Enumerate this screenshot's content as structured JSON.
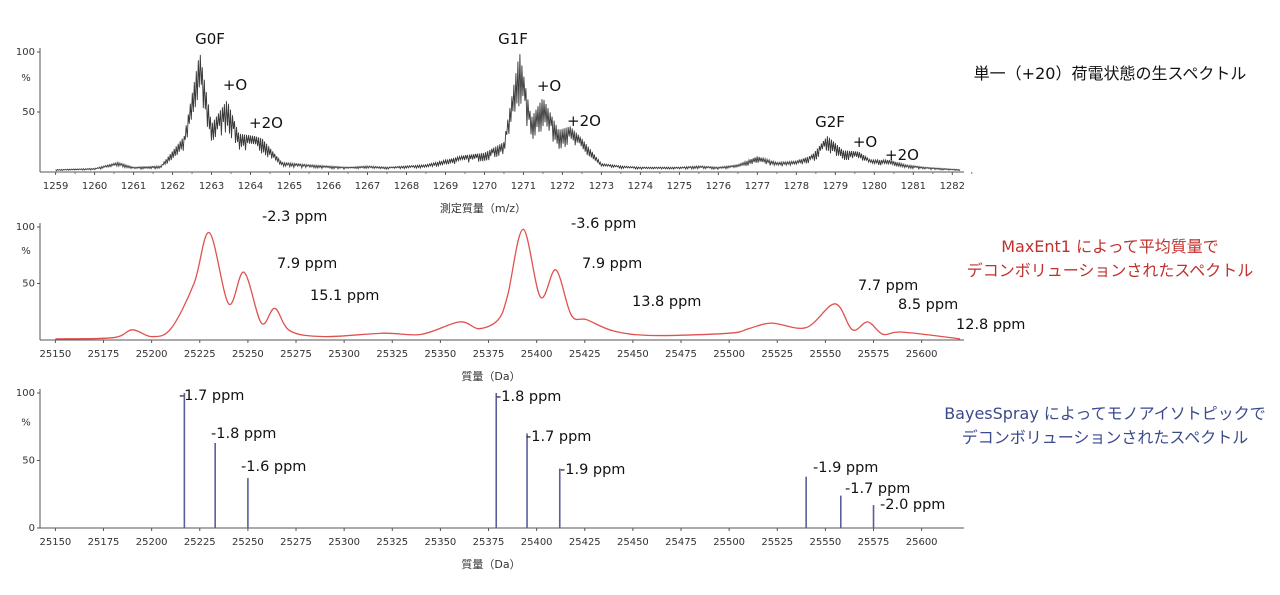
{
  "colors": {
    "raw": "#3a3a3a",
    "maxent": "#e0524f",
    "bayes": "#5a5e9c",
    "side_red": "#c0312e",
    "side_blue": "#3b4a8c"
  },
  "chart_data": [
    {
      "type": "line",
      "x": [
        1259.0,
        1260.0,
        1260.6,
        1261.0,
        1261.7,
        1262.3,
        1262.7,
        1263.0,
        1263.4,
        1263.7,
        1264.1,
        1264.3,
        1264.8,
        1265.5,
        1266.0,
        1266.5,
        1267.0,
        1267.5,
        1268.0,
        1268.5,
        1269.0,
        1269.5,
        1270.0,
        1270.5,
        1270.9,
        1271.2,
        1271.5,
        1271.9,
        1272.2,
        1272.5,
        1273.0,
        1273.5,
        1274.0,
        1274.5,
        1275.0,
        1275.5,
        1276.0,
        1276.5,
        1277.0,
        1277.5,
        1278.0,
        1278.4,
        1278.8,
        1279.2,
        1279.6,
        1279.9,
        1280.4,
        1280.8,
        1281.3,
        1282.2
      ],
      "y": [
        2,
        3,
        8,
        4,
        5,
        30,
        100,
        40,
        60,
        32,
        30,
        28,
        8,
        6,
        5,
        4,
        5,
        4,
        5,
        6,
        10,
        14,
        16,
        25,
        100,
        45,
        62,
        35,
        38,
        28,
        7,
        5,
        4,
        4,
        4,
        5,
        4,
        6,
        13,
        8,
        9,
        14,
        30,
        18,
        17,
        10,
        10,
        6,
        4,
        2
      ],
      "ylim": [
        0,
        100
      ],
      "yticks": [
        100,
        50
      ],
      "ylabel": "%",
      "xticks": [
        1259,
        1260,
        1261,
        1262,
        1263,
        1264,
        1265,
        1266,
        1267,
        1268,
        1269,
        1270,
        1271,
        1272,
        1273,
        1274,
        1275,
        1276,
        1277,
        1278,
        1279,
        1280,
        1281,
        1282
      ],
      "xlabel": "測定質量（m/z）",
      "annotations": [
        "G0F",
        "+O",
        "+2O",
        "G1F",
        "+O",
        "+2O",
        "G2F",
        "+O",
        "+2O"
      ],
      "side_text": "単一（+20）荷電状態の生スペクトル"
    },
    {
      "type": "line",
      "x": [
        25150,
        25180,
        25190,
        25200,
        25210,
        25222,
        25230,
        25240,
        25248,
        25257,
        25264,
        25272,
        25290,
        25320,
        25340,
        25360,
        25370,
        25380,
        25385,
        25393,
        25402,
        25410,
        25418,
        25426,
        25440,
        25460,
        25500,
        25510,
        25522,
        25540,
        25555,
        25564,
        25572,
        25580,
        25590,
        25620
      ],
      "y": [
        1,
        2,
        9,
        3,
        10,
        50,
        95,
        32,
        60,
        15,
        28,
        8,
        3,
        6,
        5,
        16,
        10,
        18,
        40,
        98,
        38,
        62,
        22,
        18,
        8,
        4,
        6,
        10,
        15,
        11,
        32,
        9,
        16,
        5,
        7,
        1
      ],
      "ylim": [
        0,
        100
      ],
      "yticks": [
        100,
        50
      ],
      "ylabel": "%",
      "xticks": [
        25150,
        25175,
        25200,
        25225,
        25250,
        25275,
        25300,
        25325,
        25350,
        25375,
        25400,
        25425,
        25450,
        25475,
        25500,
        25525,
        25550,
        25575,
        25600
      ],
      "xlabel": "質量（Da）",
      "annotations": [
        "-2.3 ppm",
        "7.9 ppm",
        "15.1 ppm",
        "-3.6 ppm",
        "7.9 ppm",
        "13.8 ppm",
        "7.7 ppm",
        "8.5 ppm",
        "12.8 ppm"
      ],
      "side_text": [
        "MaxEnt1 によって平均質量で",
        "デコンボリューションされたスペクトル"
      ]
    },
    {
      "type": "bar",
      "x": [
        25217,
        25233,
        25250,
        25379,
        25395,
        25412,
        25540,
        25558,
        25575
      ],
      "y": [
        100,
        63,
        37,
        100,
        70,
        44,
        38,
        24,
        17
      ],
      "ylim": [
        0,
        100
      ],
      "yticks": [
        100,
        50,
        0
      ],
      "ylabel": "%",
      "xticks": [
        25150,
        25175,
        25200,
        25225,
        25250,
        25275,
        25300,
        25325,
        25350,
        25375,
        25400,
        25425,
        25450,
        25475,
        25500,
        25525,
        25550,
        25575,
        25600
      ],
      "xlabel": "質量（Da）",
      "annotations": [
        "-1.7 ppm",
        "-1.8 ppm",
        "-1.6 ppm",
        "-1.8 ppm",
        "-1.7 ppm",
        "-1.9 ppm",
        "-1.9 ppm",
        "-1.7 ppm",
        "-2.0 ppm"
      ],
      "side_text": [
        "BayesSpray によってモノアイソトピックで",
        "デコンボリューションされたスペクトル"
      ]
    }
  ]
}
